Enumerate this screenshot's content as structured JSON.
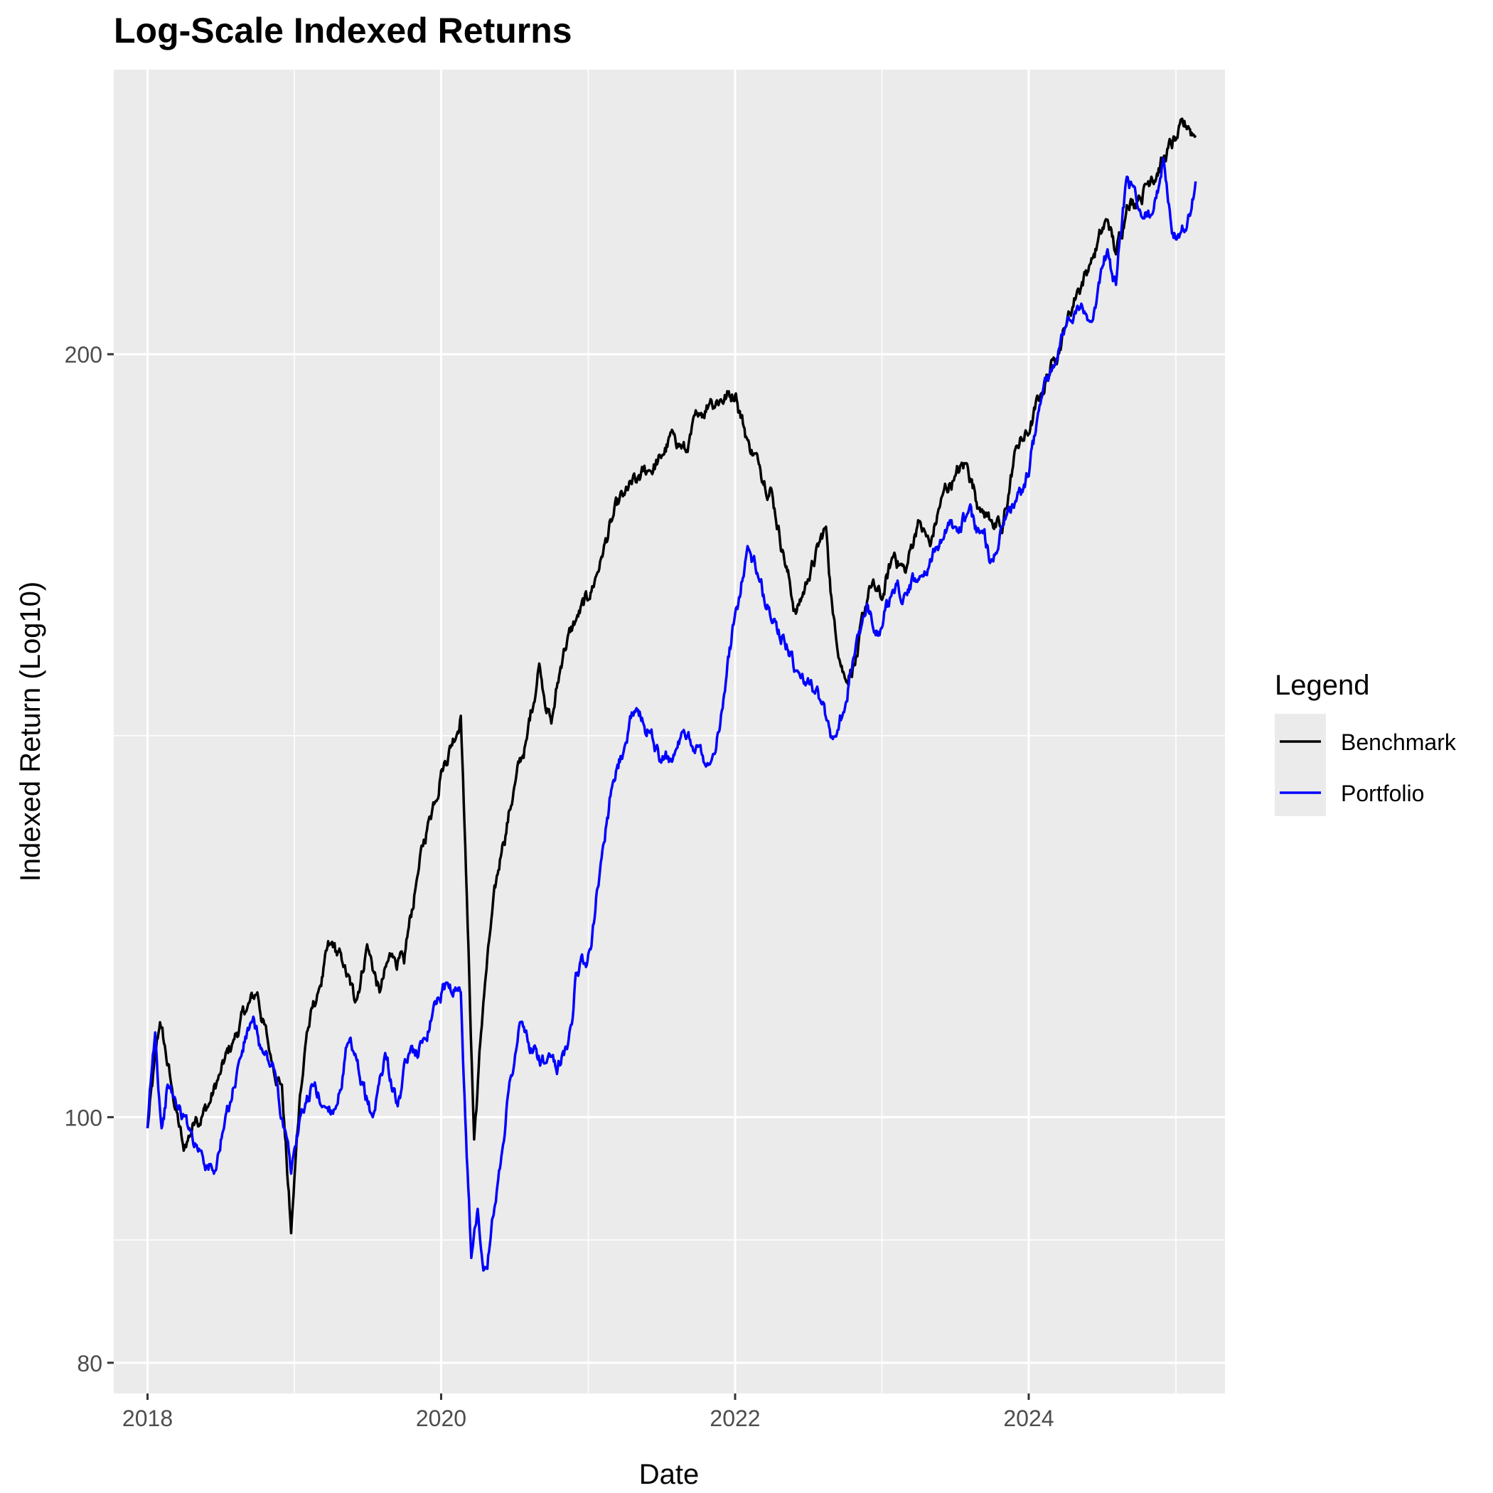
{
  "chart_data": {
    "type": "line",
    "title": "Log-Scale Indexed Returns",
    "xlabel": "Date",
    "ylabel": "Indexed Return (Log10)",
    "y_scale": "log10",
    "xlim": [
      "2017-10-09",
      "2025-05-03"
    ],
    "ylim": [
      77.8,
      259
    ],
    "x_ticks": [
      "2018",
      "2020",
      "2022",
      "2024"
    ],
    "y_ticks": [
      "80",
      "100",
      "200"
    ],
    "grid": true,
    "panel_color": "#EBEBEB",
    "legend": {
      "title": "Legend",
      "placement": "right",
      "entries": [
        {
          "label": "Benchmark",
          "color": "#000000"
        },
        {
          "label": "Portfolio",
          "color": "#0000FF"
        }
      ]
    },
    "series": [
      {
        "name": "Benchmark",
        "color": "#000000",
        "x": [
          "2018-01-01",
          "2018-02-01",
          "2018-03-01",
          "2018-04-01",
          "2018-05-01",
          "2018-06-01",
          "2018-07-01",
          "2018-08-01",
          "2018-09-01",
          "2018-10-01",
          "2018-11-01",
          "2018-12-01",
          "2018-12-24",
          "2019-01-15",
          "2019-02-01",
          "2019-03-01",
          "2019-04-01",
          "2019-05-01",
          "2019-06-01",
          "2019-07-01",
          "2019-08-01",
          "2019-09-01",
          "2019-10-01",
          "2019-11-01",
          "2019-12-01",
          "2020-01-01",
          "2020-02-19",
          "2020-03-01",
          "2020-03-23",
          "2020-04-15",
          "2020-05-01",
          "2020-06-01",
          "2020-07-01",
          "2020-08-01",
          "2020-09-01",
          "2020-10-01",
          "2020-11-01",
          "2020-12-01",
          "2021-01-01",
          "2021-02-01",
          "2021-03-01",
          "2021-04-01",
          "2021-05-01",
          "2021-06-01",
          "2021-07-01",
          "2021-08-01",
          "2021-09-01",
          "2021-10-01",
          "2021-11-01",
          "2022-01-03",
          "2022-02-01",
          "2022-03-01",
          "2022-04-01",
          "2022-05-01",
          "2022-06-01",
          "2022-07-01",
          "2022-08-15",
          "2022-09-01",
          "2022-10-01",
          "2022-11-01",
          "2022-12-01",
          "2023-01-01",
          "2023-02-01",
          "2023-03-01",
          "2023-04-01",
          "2023-05-01",
          "2023-06-01",
          "2023-07-01",
          "2023-08-01",
          "2023-09-01",
          "2023-10-01",
          "2023-10-27",
          "2023-12-01",
          "2024-01-01",
          "2024-02-01",
          "2024-03-01",
          "2024-04-01",
          "2024-05-01",
          "2024-06-01",
          "2024-07-15",
          "2024-08-05",
          "2024-09-01",
          "2024-10-01",
          "2024-11-01",
          "2024-12-01",
          "2025-01-01",
          "2025-02-01",
          "2025-02-19"
        ],
        "y": [
          99,
          109,
          103,
          97,
          100,
          101,
          104,
          107,
          110,
          112,
          106,
          103,
          90,
          102,
          108,
          112,
          117,
          115,
          111,
          117,
          112,
          116,
          115,
          124,
          131,
          137,
          144,
          128,
          98,
          111,
          118,
          128,
          135,
          141,
          151,
          143,
          153,
          157,
          160,
          166,
          172,
          176,
          178,
          180,
          182,
          186,
          183,
          189,
          192,
          193,
          185,
          181,
          177,
          167,
          158,
          163,
          171,
          158,
          149,
          152,
          162,
          160,
          167,
          164,
          172,
          168,
          176,
          179,
          181,
          174,
          172,
          170,
          184,
          186,
          193,
          199,
          205,
          212,
          217,
          226,
          219,
          229,
          231,
          235,
          239,
          243,
          246,
          244
        ]
      },
      {
        "name": "Portfolio",
        "color": "#0000FF",
        "x": [
          "2018-01-01",
          "2018-01-20",
          "2018-02-05",
          "2018-02-20",
          "2018-03-15",
          "2018-04-15",
          "2018-05-15",
          "2018-06-15",
          "2018-07-10",
          "2018-08-15",
          "2018-09-15",
          "2018-10-15",
          "2018-11-15",
          "2018-12-24",
          "2019-01-15",
          "2019-02-15",
          "2019-03-15",
          "2019-04-15",
          "2019-05-15",
          "2019-06-15",
          "2019-07-15",
          "2019-08-15",
          "2019-09-15",
          "2019-10-15",
          "2019-11-15",
          "2019-12-15",
          "2020-01-15",
          "2020-02-19",
          "2020-03-01",
          "2020-03-16",
          "2020-04-01",
          "2020-04-15",
          "2020-05-01",
          "2020-05-20",
          "2020-06-15",
          "2020-07-15",
          "2020-08-15",
          "2020-09-15",
          "2020-10-15",
          "2020-11-15",
          "2020-12-01",
          "2021-01-01",
          "2021-02-01",
          "2021-03-01",
          "2021-04-01",
          "2021-05-01",
          "2021-06-01",
          "2021-07-01",
          "2021-08-01",
          "2021-09-01",
          "2021-10-01",
          "2021-11-01",
          "2021-12-01",
          "2022-01-01",
          "2022-02-01",
          "2022-03-01",
          "2022-04-01",
          "2022-05-01",
          "2022-06-01",
          "2022-07-01",
          "2022-08-01",
          "2022-09-01",
          "2022-10-01",
          "2022-11-01",
          "2022-12-01",
          "2023-01-01",
          "2023-02-01",
          "2023-03-01",
          "2023-04-01",
          "2023-05-01",
          "2023-06-01",
          "2023-07-01",
          "2023-08-01",
          "2023-09-01",
          "2023-10-01",
          "2023-10-27",
          "2023-12-01",
          "2024-01-01",
          "2024-02-01",
          "2024-03-01",
          "2024-04-01",
          "2024-05-01",
          "2024-06-01",
          "2024-07-15",
          "2024-08-05",
          "2024-09-01",
          "2024-10-01",
          "2024-11-01",
          "2024-12-01",
          "2025-01-01",
          "2025-02-01",
          "2025-02-19"
        ],
        "y": [
          99,
          108,
          99,
          103,
          101,
          99,
          97,
          95,
          99,
          105,
          109,
          106,
          104,
          95,
          100,
          103,
          101,
          101,
          107,
          103,
          100,
          106,
          101,
          106,
          107,
          111,
          113,
          112,
          100,
          88,
          92,
          87,
          89,
          94,
          102,
          109,
          106,
          105,
          104,
          108,
          114,
          116,
          126,
          135,
          140,
          145,
          142,
          138,
          139,
          141,
          140,
          138,
          145,
          158,
          168,
          163,
          157,
          155,
          150,
          149,
          146,
          141,
          145,
          155,
          158,
          156,
          161,
          161,
          163,
          166,
          169,
          171,
          173,
          170,
          166,
          171,
          175,
          179,
          192,
          198,
          205,
          209,
          206,
          220,
          213,
          235,
          228,
          227,
          239,
          222,
          227,
          234
        ]
      }
    ]
  }
}
